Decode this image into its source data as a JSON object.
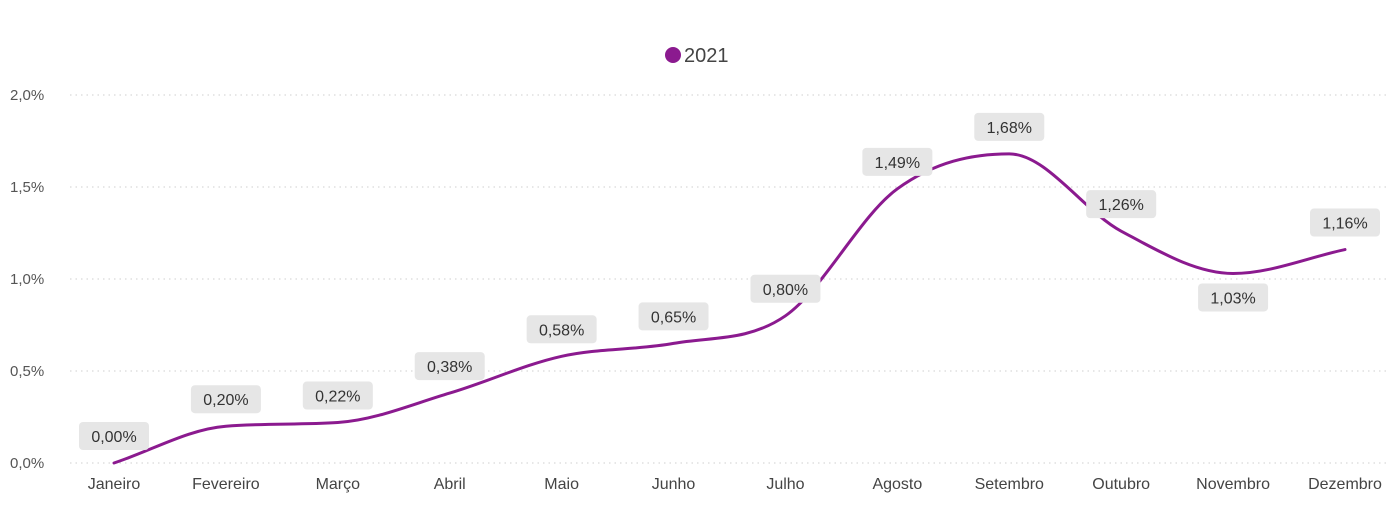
{
  "chart_data": {
    "type": "line",
    "categories": [
      "Janeiro",
      "Fevereiro",
      "Março",
      "Abril",
      "Maio",
      "Junho",
      "Julho",
      "Agosto",
      "Setembro",
      "Outubro",
      "Novembro",
      "Dezembro"
    ],
    "series": [
      {
        "name": "2021",
        "color": "#8B1A8F",
        "values": [
          0.0,
          0.2,
          0.22,
          0.38,
          0.58,
          0.65,
          0.8,
          1.49,
          1.68,
          1.26,
          1.03,
          1.16
        ],
        "labels": [
          "0,00%",
          "0,20%",
          "0,22%",
          "0,38%",
          "0,58%",
          "0,65%",
          "0,80%",
          "1,49%",
          "1,68%",
          "1,26%",
          "1,03%",
          "1,16%"
        ]
      }
    ],
    "ylim": [
      0,
      2.0
    ],
    "yticks": [
      0,
      0.5,
      1.0,
      1.5,
      2.0
    ],
    "ytick_labels": [
      "0,0%",
      "0,5%",
      "1,0%",
      "1,5%",
      "2,0%"
    ],
    "legend_position": "top-center",
    "grid": true,
    "label_box_color": "#E6E6E6"
  }
}
